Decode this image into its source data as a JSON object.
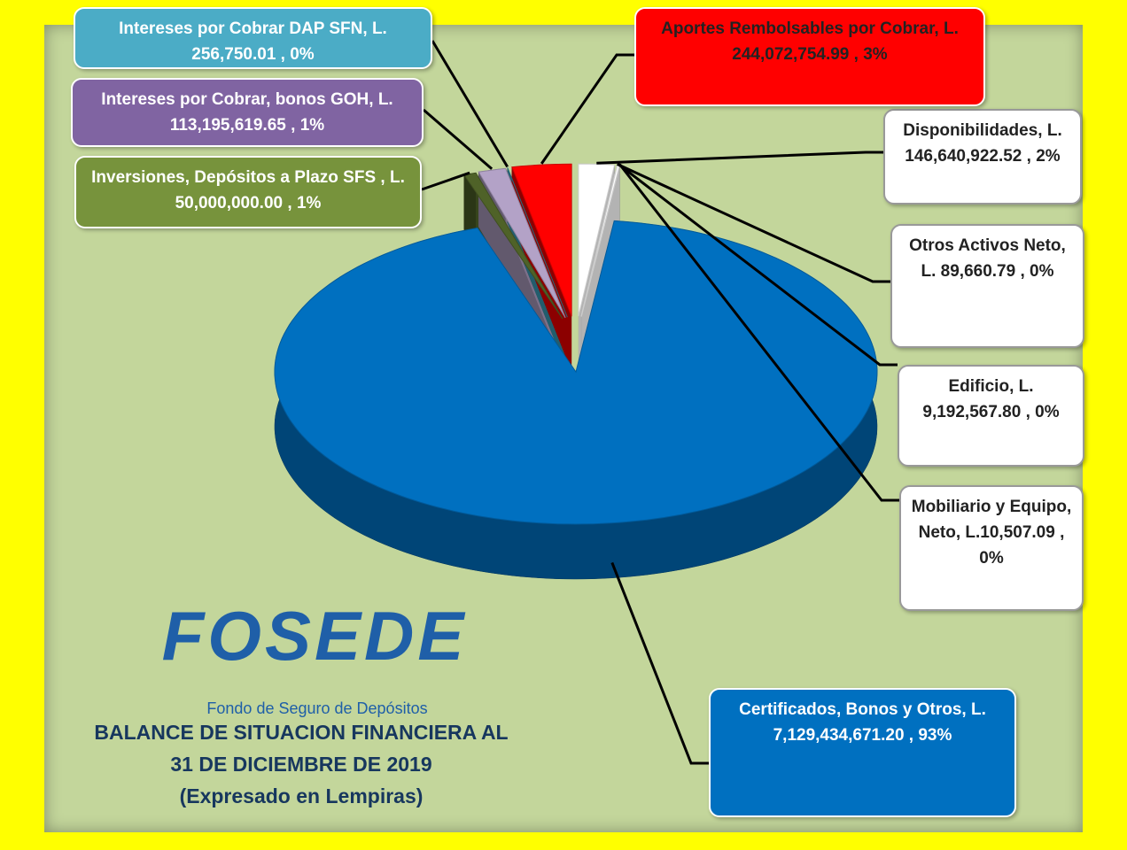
{
  "chart_data": {
    "type": "pie",
    "title": "BALANCE DE SITUACION FINANCIERA AL",
    "subtitle": "31 DE DICIEMBRE DE 2019",
    "note": "(Expresado en Lempiras)",
    "logo": "FOSEDE",
    "logo_caption": "Fondo de Seguro de Depósitos",
    "categories": [
      "Disponibilidades,",
      "Otros Activos Neto,",
      "Edificio,",
      "Mobiliario y Equipo, Neto,",
      "Certificados, Bonos y Otros,",
      "Inversiones, Depósitos a Plazo SFS ,",
      "Intereses por Cobrar, bonos GOH,",
      "Intereses por Cobrar DAP SFN,",
      "Aportes Rembolsables por Cobrar,"
    ],
    "values": [
      146640922.52,
      89660.79,
      9192567.8,
      10507.09,
      7129434671.2,
      50000000.0,
      113195619.65,
      256750.01,
      244072754.99
    ],
    "value_labels": [
      "L. 146,640,922.52 ,",
      "L. 89,660.79 ,",
      "L. 9,192,567.80 ,",
      "L.10,507.09 ,",
      "L. 7,129,434,671.20 ,",
      "L. 50,000,000.00 ,",
      "L. 113,195,619.65 ,",
      "L. 256,750.01 ,",
      "L. 244,072,754.99 ,"
    ],
    "percents": [
      2,
      0,
      0,
      0,
      93,
      1,
      1,
      0,
      3
    ],
    "percent_labels": [
      "2%",
      "0%",
      "0%",
      "0%",
      "93%",
      "1%",
      "1%",
      "0%",
      "3%"
    ],
    "colors": [
      "#ffffff",
      "#ffffff",
      "#ffffff",
      "#ffffff",
      "#0070c0",
      "#4f6228",
      "#b3a2c7",
      "#31859c",
      "#ff0000"
    ],
    "box_colors": [
      "#ffffff",
      "#ffffff",
      "#ffffff",
      "#ffffff",
      "#0070c0",
      "#77933c",
      "#8064a2",
      "#4bacc6",
      "#ff0000"
    ]
  }
}
